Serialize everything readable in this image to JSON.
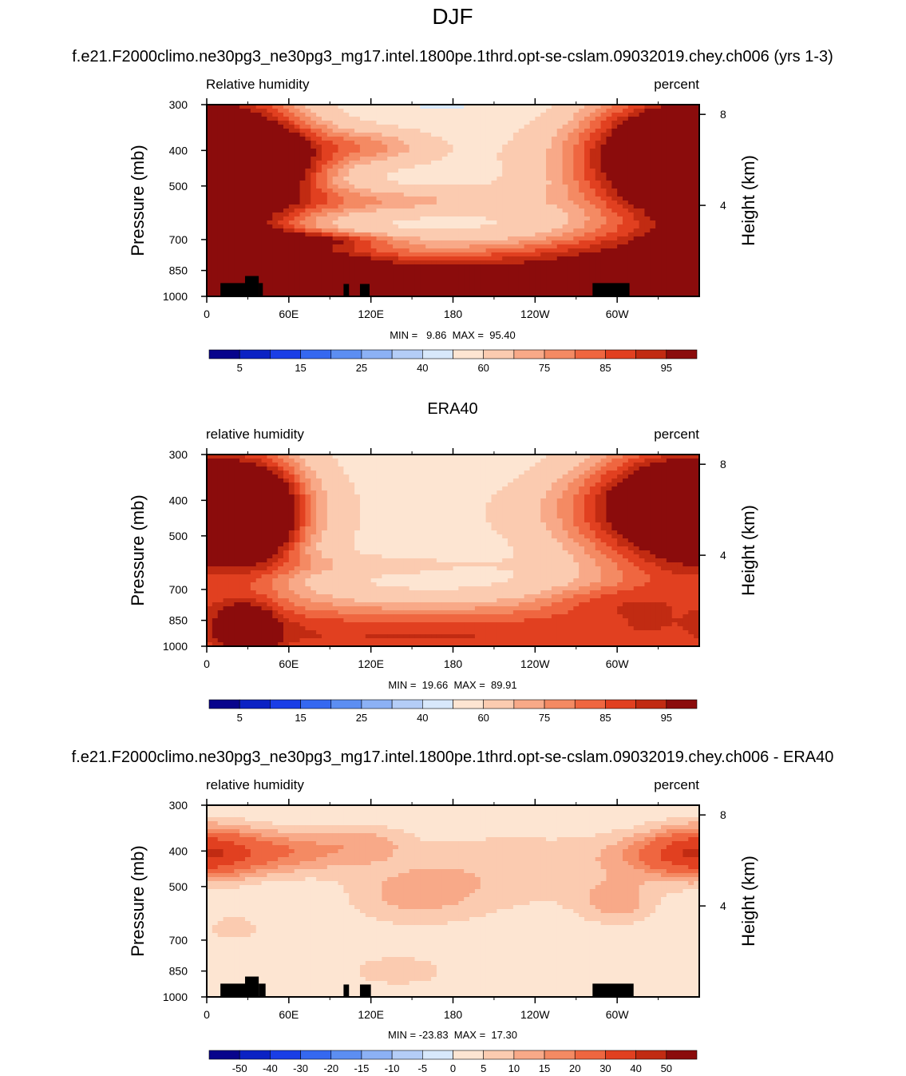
{
  "figure": {
    "title": "DJF",
    "cbar_model": [
      "5",
      "15",
      "25",
      "40",
      "60",
      "75",
      "85",
      "95"
    ],
    "cbar_diff": [
      "-50",
      "-40",
      "-30",
      "-20",
      "-15",
      "-10",
      "-5",
      "0",
      "5",
      "10",
      "15",
      "20",
      "30",
      "40",
      "50"
    ],
    "colors_model": [
      "#08048c",
      "#0b22c4",
      "#1a3ee6",
      "#3568f0",
      "#5c8ef2",
      "#8cb1f5",
      "#b4cdf7",
      "#d8e8fb",
      "#fde5d2",
      "#fbcbb0",
      "#f8a988",
      "#f48a63",
      "#ef6640",
      "#e14020",
      "#c12b12",
      "#8b0c0c"
    ],
    "colors_diff": [
      "#08048c",
      "#0b22c4",
      "#1a3ee6",
      "#3568f0",
      "#5c8ef2",
      "#8cb1f5",
      "#b4cdf7",
      "#d8e8fb",
      "#fde5d2",
      "#fbcbb0",
      "#f8a988",
      "#f48a63",
      "#ef6640",
      "#e14020",
      "#c12b12",
      "#8b0c0c"
    ]
  },
  "chart_data": [
    {
      "type": "heatmap",
      "title": "f.e21.F2000climo.ne30pg3_ne30pg3_mg17.intel.1800pe.1thrd.opt-se-cslam.09032019.chey.ch006 (yrs 1-3)",
      "left_label": "Relative humidity",
      "right_label": "percent",
      "ylabel": "Pressure (mb)",
      "ylabel_right": "Height (km)",
      "x_ticks": [
        "0",
        "60E",
        "120E",
        "180",
        "120W",
        "60W"
      ],
      "y_ticks": [
        "300",
        "400",
        "500",
        "700",
        "850",
        "1000"
      ],
      "y_ticks_right": [
        "8",
        "4"
      ],
      "min_text": "MIN =   9.86",
      "max_text": "MAX =  95.40",
      "xlim": [
        0,
        360
      ],
      "ylim": [
        1000,
        300
      ],
      "y_scale": "log-pressure",
      "levels": [
        5,
        10,
        15,
        20,
        25,
        30,
        40,
        50,
        60,
        70,
        75,
        80,
        85,
        90,
        95
      ],
      "colorbar_labels": [
        "5",
        "15",
        "25",
        "40",
        "60",
        "75",
        "85",
        "95"
      ],
      "terrain": [
        [
          10,
          30,
          920
        ],
        [
          28,
          38,
          880
        ],
        [
          38,
          41,
          920
        ],
        [
          100,
          104,
          925
        ],
        [
          112,
          119,
          925
        ],
        [
          282,
          309,
          920
        ]
      ],
      "features": [
        [
          0,
          425,
          0.4,
          60,
          70
        ],
        [
          40,
          430,
          -0.14,
          30,
          26
        ],
        [
          125,
          390,
          -0.09,
          35,
          20
        ],
        [
          255,
          430,
          -0.28,
          90,
          12
        ],
        [
          345,
          410,
          -0.16,
          40,
          15
        ],
        [
          135,
          550,
          0.07,
          70,
          20
        ],
        [
          70,
          700,
          0.035,
          50,
          20
        ],
        [
          180,
          950,
          0.2,
          360,
          45
        ],
        [
          175,
          900,
          0.15,
          120,
          15
        ],
        [
          290,
          750,
          0.1,
          60,
          10
        ],
        [
          25,
          750,
          0.15,
          30,
          20
        ],
        [
          95,
          800,
          0.1,
          30,
          12
        ],
        [
          340,
          950,
          0.1,
          40,
          10
        ]
      ]
    },
    {
      "type": "heatmap",
      "title": "ERA40",
      "left_label": "relative humidity",
      "right_label": "percent",
      "ylabel": "Pressure (mb)",
      "ylabel_right": "Height (km)",
      "x_ticks": [
        "0",
        "60E",
        "120E",
        "180",
        "120W",
        "60W"
      ],
      "y_ticks": [
        "300",
        "400",
        "500",
        "700",
        "850",
        "1000"
      ],
      "y_ticks_right": [
        "8",
        "4"
      ],
      "min_text": "MIN =  19.66",
      "max_text": "MAX =  89.91",
      "xlim": [
        0,
        360
      ],
      "ylim": [
        1000,
        300
      ],
      "y_scale": "log-pressure",
      "levels": [
        5,
        10,
        15,
        20,
        25,
        30,
        40,
        50,
        60,
        70,
        75,
        80,
        85,
        90,
        95
      ],
      "colorbar_labels": [
        "5",
        "15",
        "25",
        "40",
        "60",
        "75",
        "85",
        "95"
      ],
      "terrain": [],
      "features": [
        [
          0,
          425,
          0.4,
          60,
          62
        ],
        [
          40,
          440,
          -0.18,
          18,
          30
        ],
        [
          255,
          430,
          -0.28,
          90,
          15
        ],
        [
          345,
          400,
          -0.14,
          40,
          12
        ],
        [
          130,
          600,
          0.05,
          60,
          10
        ],
        [
          180,
          950,
          0.2,
          360,
          35
        ],
        [
          165,
          930,
          0.15,
          120,
          10
        ],
        [
          30,
          900,
          -0.12,
          15,
          25
        ],
        [
          290,
          750,
          0.08,
          40,
          10
        ]
      ]
    },
    {
      "type": "heatmap",
      "title": "f.e21.F2000climo.ne30pg3_ne30pg3_mg17.intel.1800pe.1thrd.opt-se-cslam.09032019.chey.ch006 - ERA40",
      "left_label": "relative humidity",
      "right_label": "percent",
      "ylabel": "Pressure (mb)",
      "ylabel_right": "Height (km)",
      "x_ticks": [
        "0",
        "60E",
        "120E",
        "180",
        "120W",
        "60W"
      ],
      "y_ticks": [
        "300",
        "400",
        "500",
        "700",
        "850",
        "1000"
      ],
      "y_ticks_right": [
        "8",
        "4"
      ],
      "min_text": "MIN = -23.83",
      "max_text": "MAX =  17.30",
      "xlim": [
        0,
        360
      ],
      "ylim": [
        1000,
        300
      ],
      "y_scale": "log-pressure",
      "levels": [
        -50,
        -40,
        -30,
        -20,
        -15,
        -10,
        -5,
        0,
        5,
        10,
        15,
        20,
        30,
        40,
        50
      ],
      "colorbar_labels": [
        "-50",
        "-40",
        "-30",
        "-20",
        "-15",
        "-10",
        "-5",
        "0",
        "5",
        "10",
        "15",
        "20",
        "30",
        "40",
        "50"
      ],
      "terrain": [
        [
          10,
          30,
          920
        ],
        [
          28,
          38,
          880
        ],
        [
          38,
          43,
          920
        ],
        [
          100,
          104,
          925
        ],
        [
          112,
          120,
          925
        ],
        [
          282,
          312,
          920
        ]
      ],
      "features": [
        [
          0,
          400,
          -0.12,
          25,
          20
        ],
        [
          65,
          400,
          -0.1,
          35,
          15
        ],
        [
          350,
          410,
          -0.1,
          40,
          20
        ],
        [
          150,
          530,
          0.14,
          35,
          10
        ],
        [
          120,
          380,
          0.08,
          20,
          8
        ],
        [
          300,
          550,
          0.1,
          20,
          12
        ],
        [
          220,
          450,
          -0.2,
          60,
          8
        ],
        [
          20,
          650,
          0.1,
          25,
          6
        ],
        [
          140,
          850,
          -0.08,
          30,
          8
        ],
        [
          0,
          850,
          0.5,
          400,
          0
        ]
      ]
    }
  ]
}
